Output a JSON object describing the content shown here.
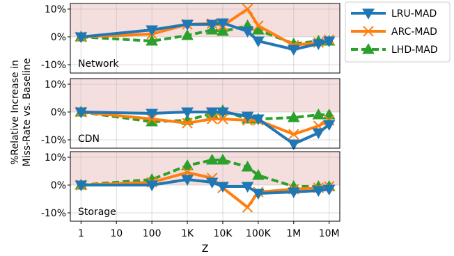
{
  "chart_data": {
    "type": "line",
    "xlabel": "Z",
    "ylabel_lines": [
      "%Relative Increase in",
      "Miss-Rate vs. Baseline"
    ],
    "x_ticks": [
      "1",
      "10",
      "100",
      "1K",
      "10K",
      "100K",
      "1M",
      "10M"
    ],
    "x_tick_values": [
      1,
      10,
      100,
      1000,
      10000,
      100000,
      1000000,
      10000000
    ],
    "x_scale": "log",
    "xlim": [
      0.5,
      20000000
    ],
    "y_ticks": [
      "10%",
      "0%",
      "-10%"
    ],
    "y_tick_values": [
      10,
      0,
      -10
    ],
    "ylim": [
      -13,
      12
    ],
    "shaded_region": {
      "from": 0,
      "to": 12,
      "color": "#f5dede"
    },
    "grid": true,
    "legend": {
      "placement": "outside-right",
      "entries": [
        "LRU-MAD",
        "ARC-MAD",
        "LHD-MAD"
      ]
    },
    "colors": {
      "LRU-MAD": "#1f77b4",
      "ARC-MAD": "#ff7f0e",
      "LHD-MAD": "#2ca02c"
    },
    "markers": {
      "LRU-MAD": "triangle-down",
      "ARC-MAD": "x",
      "LHD-MAD": "triangle-up"
    },
    "line_styles": {
      "LRU-MAD": "solid",
      "ARC-MAD": "solid",
      "LHD-MAD": "dashed"
    },
    "x": [
      1,
      100,
      1000,
      5000,
      10000,
      50000,
      100000,
      1000000,
      5000000,
      10000000
    ],
    "panels": [
      {
        "label": "Network",
        "series": [
          {
            "name": "LRU-MAD",
            "values": [
              0.0,
              2.5,
              4.5,
              4.5,
              5.0,
              2.0,
              -1.5,
              -4.5,
              -2.5,
              -1.5
            ]
          },
          {
            "name": "ARC-MAD",
            "values": [
              0.0,
              1.0,
              4.5,
              4.8,
              4.0,
              10.0,
              4.0,
              -3.0,
              -2.0,
              -1.0
            ]
          },
          {
            "name": "LHD-MAD",
            "values": [
              0.0,
              -1.5,
              0.5,
              2.5,
              2.0,
              4.0,
              2.5,
              -2.5,
              -1.5,
              -1.5
            ]
          }
        ]
      },
      {
        "label": "CDN",
        "series": [
          {
            "name": "LRU-MAD",
            "values": [
              0.0,
              -0.5,
              0.0,
              0.0,
              0.0,
              -1.5,
              -2.5,
              -11.5,
              -7.5,
              -4.5
            ]
          },
          {
            "name": "ARC-MAD",
            "values": [
              0.0,
              -2.5,
              -4.0,
              -2.5,
              -2.5,
              -3.0,
              -3.0,
              -8.0,
              -5.0,
              -3.0
            ]
          },
          {
            "name": "LHD-MAD",
            "values": [
              0.0,
              -3.5,
              -3.0,
              -0.5,
              0.5,
              -2.5,
              -2.5,
              -2.0,
              -1.0,
              -1.0
            ]
          }
        ]
      },
      {
        "label": "Storage",
        "series": [
          {
            "name": "LRU-MAD",
            "values": [
              0.0,
              0.0,
              2.0,
              1.0,
              -0.5,
              -0.5,
              -3.0,
              -2.5,
              -2.0,
              -1.5
            ]
          },
          {
            "name": "ARC-MAD",
            "values": [
              0.0,
              1.0,
              4.5,
              2.5,
              -1.0,
              -8.0,
              -2.5,
              -1.5,
              -1.0,
              -0.5
            ]
          },
          {
            "name": "LHD-MAD",
            "values": [
              0.0,
              2.0,
              7.0,
              9.0,
              9.0,
              6.5,
              3.5,
              -0.5,
              -0.5,
              -0.5
            ]
          }
        ]
      }
    ]
  }
}
